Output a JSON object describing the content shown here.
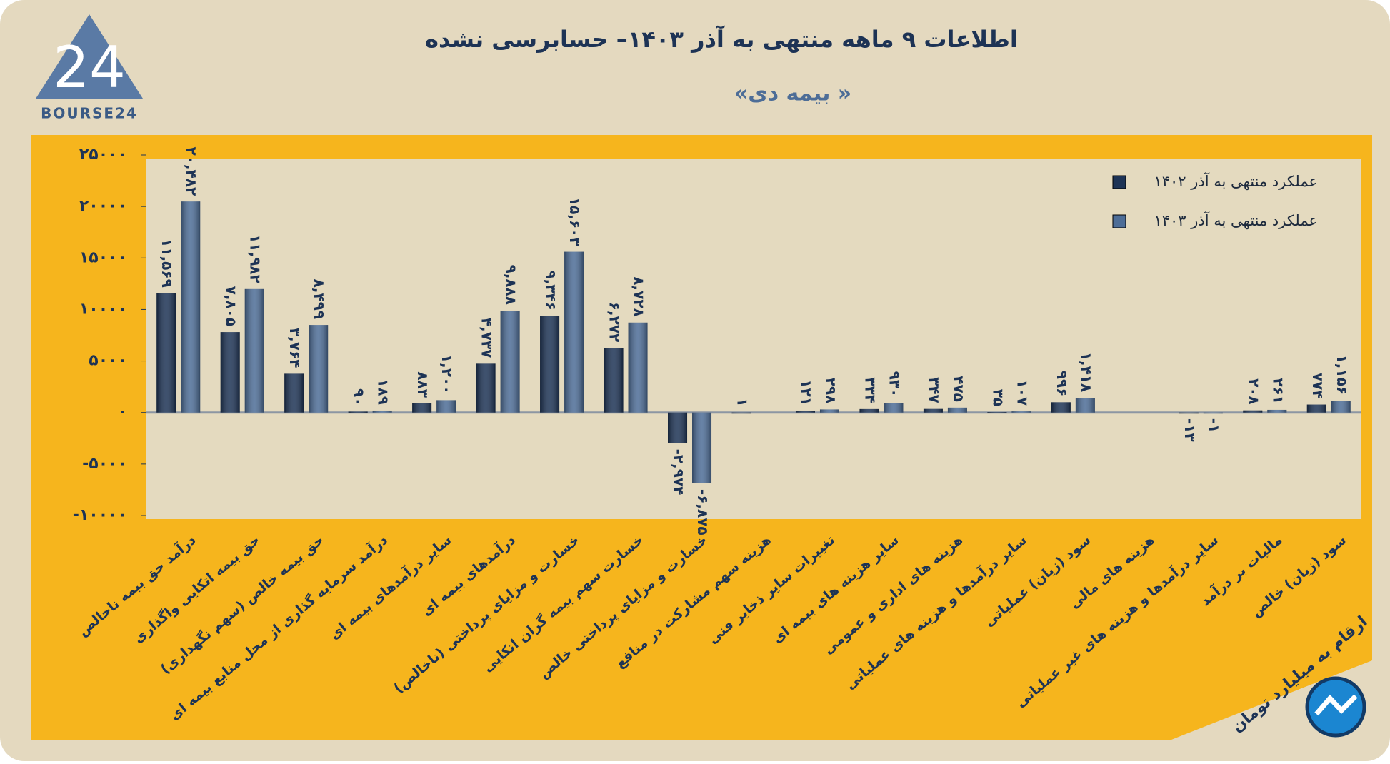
{
  "header": {
    "logo_number": "24",
    "logo_text": "BOURSE24"
  },
  "note": "ارقام به میلیارد تومان",
  "chart_data": {
    "type": "bar",
    "title": "اطلاعات ۹ ماهه منتهی به آذر ۱۴۰۳– حسابرسی نشده",
    "subtitle": "«بیمه دی »",
    "categories": [
      "درآمد حق بیمه ناخالص",
      "حق بیمه اتکایی واگذاری",
      "حق بیمه خالص (سهم نگهداری)",
      "درآمد سرمایه گذاری از محل منابع بیمه ای",
      "سایر درآمدهای بیمه ای",
      "درآمدهای بیمه ای",
      "خسارت و مزایای پرداختی (ناخالص)",
      "خسارت سهم بیمه گران اتکایی",
      "خسارت و مزایای پرداختی خالص",
      "هزینه سهم مشارکت در منافع",
      "تغییرات سایر ذخایر فنی",
      "سایر هزینه های بیمه ای",
      "هزینه های اداری و عمومی",
      "سایر درآمدها و هزینه های عملیاتی",
      "سود (زیان) عملیاتی",
      "هزینه های مالی",
      "سایر درآمدها و هزینه های غیر عملیاتی",
      "مالیات بر درآمد",
      "سود (زیان) خالص"
    ],
    "series": [
      {
        "name": "عملکرد منتهی به آذر ۱۴۰۲",
        "color": "#1d3355",
        "values": [
          11569,
          7805,
          3764,
          90,
          883,
          4737,
          9346,
          6272,
          -2974,
          1,
          121,
          334,
          347,
          35,
          996,
          null,
          -13,
          208,
          774
        ],
        "value_labels": [
          "۱۱,۵۶۹",
          "۷,۸۰۵",
          "۳,۷۶۴",
          "۹۰",
          "۸۸۳",
          "۴,۷۳۷",
          "۹,۳۴۶",
          "۶,۲۷۲",
          "-۲,۹۷۴",
          "۱",
          "۱۲۱",
          "۳۳۴",
          "۳۴۷",
          "۳۵",
          "۹۹۶",
          null,
          "-۱۳",
          "۲۰۸",
          "۷۷۴"
        ]
      },
      {
        "name": "عملکرد منتهی به آذر ۱۴۰۳",
        "color": "#4d6d97",
        "values": [
          20482,
          11982,
          8499,
          189,
          1200,
          9888,
          15603,
          8728,
          -6875,
          null,
          298,
          930,
          475,
          107,
          1418,
          null,
          -1,
          261,
          1156
        ],
        "value_labels": [
          "۲۰,۴۸۲",
          "۱۱,۹۸۲",
          "۸,۴۹۹",
          "۱۸۹",
          "۱,۲۰۰",
          "۹,۸۸۸",
          "۱۵,۶۰۳",
          "۸,۷۲۸",
          "-۶,۸۷۵",
          null,
          "۲۹۸",
          "۹۳۰",
          "۴۷۵",
          "۱۰۷",
          "۱,۴۱۸",
          null,
          "-۱",
          "۲۶۱",
          "۱,۱۵۶"
        ]
      }
    ],
    "ylim": [
      -10000,
      25000
    ],
    "yticks": [
      {
        "value": -10000,
        "label": "-۱۰۰۰۰"
      },
      {
        "value": -5000,
        "label": "-۵۰۰۰"
      },
      {
        "value": 0,
        "label": "۰"
      },
      {
        "value": 5000,
        "label": "۵۰۰۰"
      },
      {
        "value": 10000,
        "label": "۱۰۰۰۰"
      },
      {
        "value": 15000,
        "label": "۱۵۰۰۰"
      },
      {
        "value": 20000,
        "label": "۲۰۰۰۰"
      },
      {
        "value": 25000,
        "label": "۲۵۰۰۰"
      }
    ],
    "grid": false,
    "legend": "top-right"
  }
}
